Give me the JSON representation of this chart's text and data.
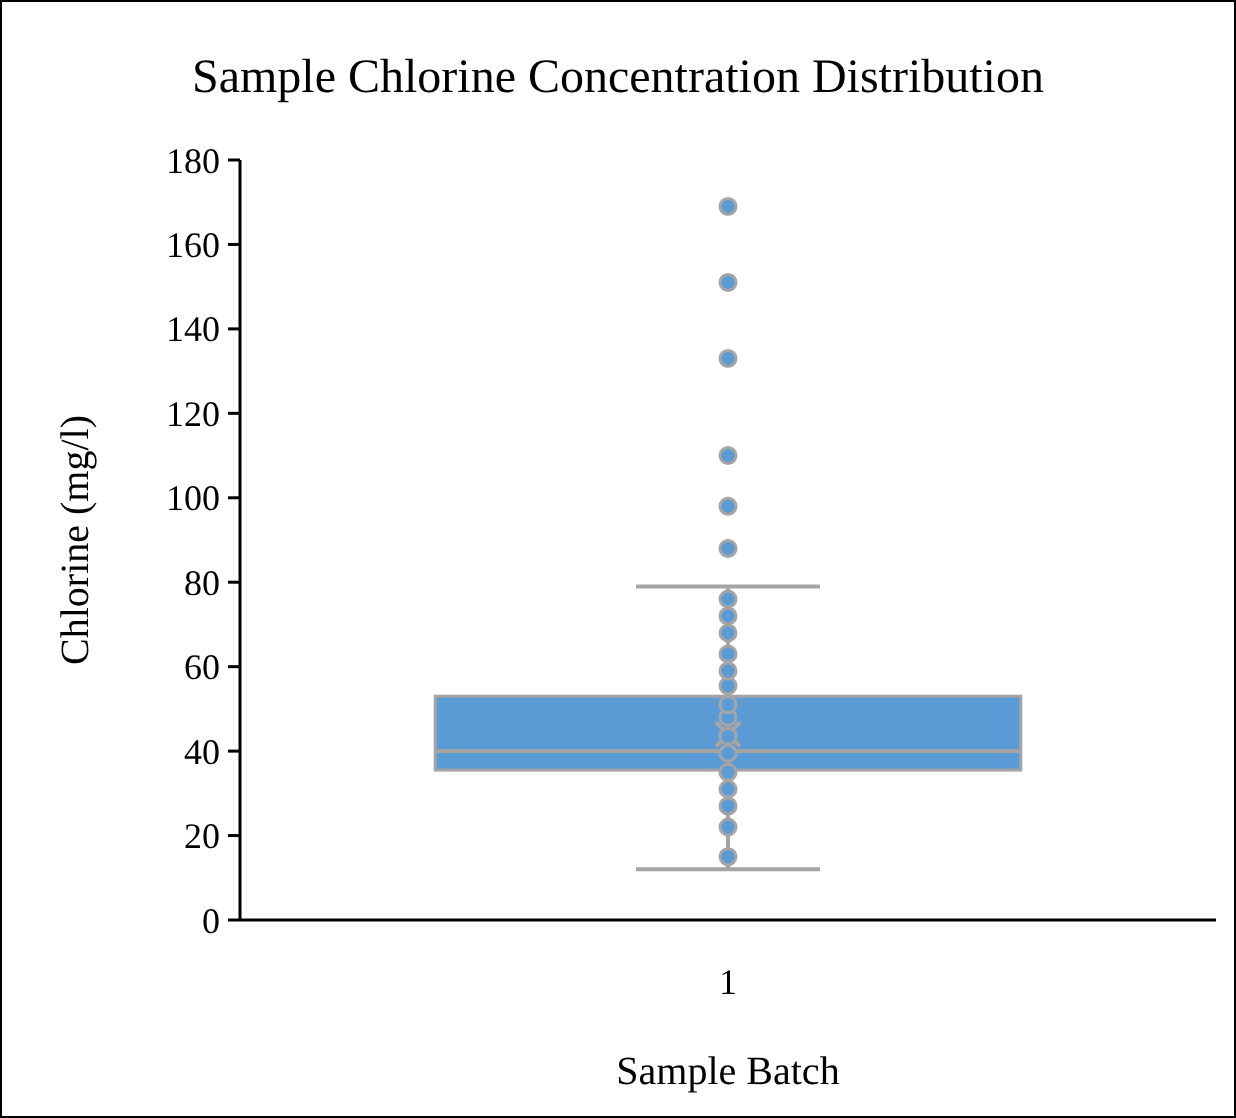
{
  "chart_data": {
    "type": "box",
    "title": "Sample Chlorine Concentration Distribution",
    "xlabel": "Sample Batch",
    "ylabel": "Chlorine (mg/l)",
    "categories": [
      "1"
    ],
    "series": [
      {
        "color": "#5b9bd5",
        "boxes": [
          {
            "low": 12,
            "q1": 35.5,
            "median": 40,
            "q3": 53,
            "high": 79,
            "mean": 44,
            "outliers": [
              88,
              98,
              110,
              133,
              151,
              169
            ]
          }
        ]
      },
      {
        "type": "scatter",
        "color": "#5b9bd5",
        "x": [
          "1",
          "1",
          "1",
          "1",
          "1",
          "1",
          "1",
          "1",
          "1",
          "1",
          "1",
          "1",
          "1",
          "1",
          "1"
        ],
        "values": [
          15,
          22,
          27,
          31,
          35,
          39.5,
          43.5,
          48,
          51,
          55.5,
          59,
          63,
          68,
          72,
          76
        ]
      }
    ],
    "ylim": [
      0,
      180
    ],
    "yticks": [
      0,
      20,
      40,
      60,
      80,
      100,
      120,
      140,
      160,
      180
    ],
    "grid": false,
    "marker": "circle"
  }
}
